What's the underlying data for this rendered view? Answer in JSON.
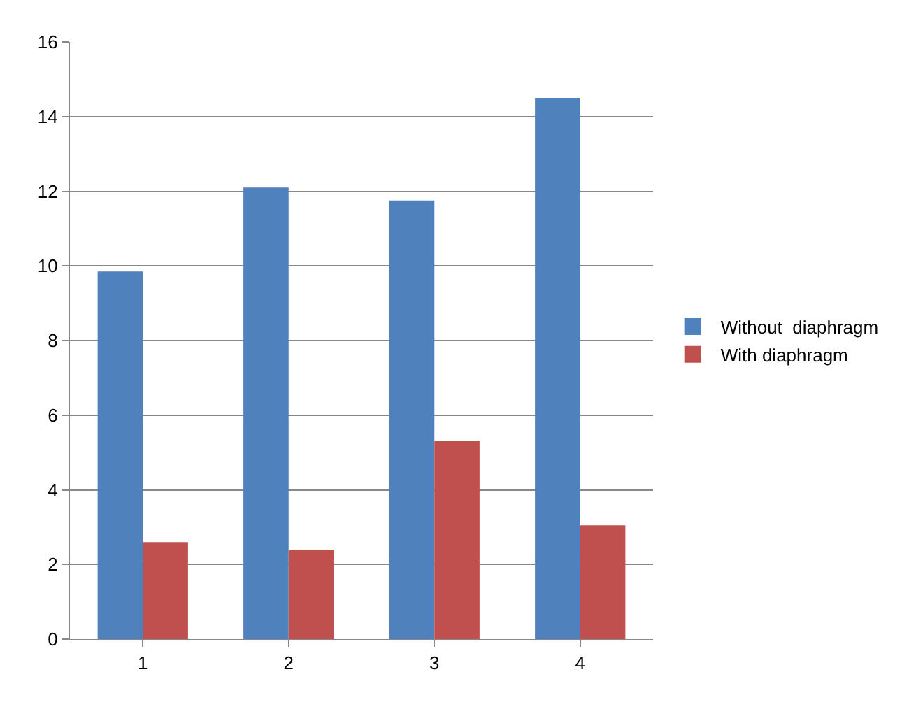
{
  "chart_data": {
    "type": "bar",
    "categories": [
      "1",
      "2",
      "3",
      "4"
    ],
    "series": [
      {
        "name": "Without  diaphragm",
        "color": "#4f81bd",
        "values": [
          9.85,
          12.1,
          11.75,
          14.5
        ]
      },
      {
        "name": "With diaphragm",
        "color": "#c0504d",
        "values": [
          2.6,
          2.4,
          5.3,
          3.05
        ]
      }
    ],
    "ylim": [
      0,
      16
    ],
    "yticks": [
      0,
      2,
      4,
      6,
      8,
      10,
      12,
      14,
      16
    ],
    "grid": "y",
    "legend": "right"
  }
}
